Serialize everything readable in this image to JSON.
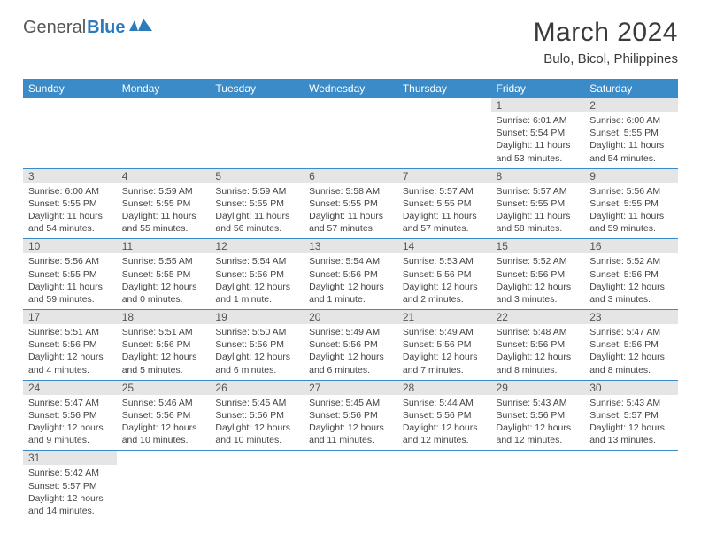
{
  "logo": {
    "word1": "General",
    "word2": "Blue"
  },
  "title": "March 2024",
  "location": "Bulo, Bicol, Philippines",
  "weekdays": [
    "Sunday",
    "Monday",
    "Tuesday",
    "Wednesday",
    "Thursday",
    "Friday",
    "Saturday"
  ],
  "colors": {
    "header_bg": "#3b8bc8",
    "header_fg": "#ffffff",
    "daynum_bg": "#e5e5e5",
    "divider": "#3b8bc8",
    "logo_blue": "#2b7bbf",
    "text": "#333333"
  },
  "weeks": [
    [
      null,
      null,
      null,
      null,
      null,
      {
        "n": "1",
        "sr": "Sunrise: 6:01 AM",
        "ss": "Sunset: 5:54 PM",
        "dl": "Daylight: 11 hours and 53 minutes."
      },
      {
        "n": "2",
        "sr": "Sunrise: 6:00 AM",
        "ss": "Sunset: 5:55 PM",
        "dl": "Daylight: 11 hours and 54 minutes."
      }
    ],
    [
      {
        "n": "3",
        "sr": "Sunrise: 6:00 AM",
        "ss": "Sunset: 5:55 PM",
        "dl": "Daylight: 11 hours and 54 minutes."
      },
      {
        "n": "4",
        "sr": "Sunrise: 5:59 AM",
        "ss": "Sunset: 5:55 PM",
        "dl": "Daylight: 11 hours and 55 minutes."
      },
      {
        "n": "5",
        "sr": "Sunrise: 5:59 AM",
        "ss": "Sunset: 5:55 PM",
        "dl": "Daylight: 11 hours and 56 minutes."
      },
      {
        "n": "6",
        "sr": "Sunrise: 5:58 AM",
        "ss": "Sunset: 5:55 PM",
        "dl": "Daylight: 11 hours and 57 minutes."
      },
      {
        "n": "7",
        "sr": "Sunrise: 5:57 AM",
        "ss": "Sunset: 5:55 PM",
        "dl": "Daylight: 11 hours and 57 minutes."
      },
      {
        "n": "8",
        "sr": "Sunrise: 5:57 AM",
        "ss": "Sunset: 5:55 PM",
        "dl": "Daylight: 11 hours and 58 minutes."
      },
      {
        "n": "9",
        "sr": "Sunrise: 5:56 AM",
        "ss": "Sunset: 5:55 PM",
        "dl": "Daylight: 11 hours and 59 minutes."
      }
    ],
    [
      {
        "n": "10",
        "sr": "Sunrise: 5:56 AM",
        "ss": "Sunset: 5:55 PM",
        "dl": "Daylight: 11 hours and 59 minutes."
      },
      {
        "n": "11",
        "sr": "Sunrise: 5:55 AM",
        "ss": "Sunset: 5:55 PM",
        "dl": "Daylight: 12 hours and 0 minutes."
      },
      {
        "n": "12",
        "sr": "Sunrise: 5:54 AM",
        "ss": "Sunset: 5:56 PM",
        "dl": "Daylight: 12 hours and 1 minute."
      },
      {
        "n": "13",
        "sr": "Sunrise: 5:54 AM",
        "ss": "Sunset: 5:56 PM",
        "dl": "Daylight: 12 hours and 1 minute."
      },
      {
        "n": "14",
        "sr": "Sunrise: 5:53 AM",
        "ss": "Sunset: 5:56 PM",
        "dl": "Daylight: 12 hours and 2 minutes."
      },
      {
        "n": "15",
        "sr": "Sunrise: 5:52 AM",
        "ss": "Sunset: 5:56 PM",
        "dl": "Daylight: 12 hours and 3 minutes."
      },
      {
        "n": "16",
        "sr": "Sunrise: 5:52 AM",
        "ss": "Sunset: 5:56 PM",
        "dl": "Daylight: 12 hours and 3 minutes."
      }
    ],
    [
      {
        "n": "17",
        "sr": "Sunrise: 5:51 AM",
        "ss": "Sunset: 5:56 PM",
        "dl": "Daylight: 12 hours and 4 minutes."
      },
      {
        "n": "18",
        "sr": "Sunrise: 5:51 AM",
        "ss": "Sunset: 5:56 PM",
        "dl": "Daylight: 12 hours and 5 minutes."
      },
      {
        "n": "19",
        "sr": "Sunrise: 5:50 AM",
        "ss": "Sunset: 5:56 PM",
        "dl": "Daylight: 12 hours and 6 minutes."
      },
      {
        "n": "20",
        "sr": "Sunrise: 5:49 AM",
        "ss": "Sunset: 5:56 PM",
        "dl": "Daylight: 12 hours and 6 minutes."
      },
      {
        "n": "21",
        "sr": "Sunrise: 5:49 AM",
        "ss": "Sunset: 5:56 PM",
        "dl": "Daylight: 12 hours and 7 minutes."
      },
      {
        "n": "22",
        "sr": "Sunrise: 5:48 AM",
        "ss": "Sunset: 5:56 PM",
        "dl": "Daylight: 12 hours and 8 minutes."
      },
      {
        "n": "23",
        "sr": "Sunrise: 5:47 AM",
        "ss": "Sunset: 5:56 PM",
        "dl": "Daylight: 12 hours and 8 minutes."
      }
    ],
    [
      {
        "n": "24",
        "sr": "Sunrise: 5:47 AM",
        "ss": "Sunset: 5:56 PM",
        "dl": "Daylight: 12 hours and 9 minutes."
      },
      {
        "n": "25",
        "sr": "Sunrise: 5:46 AM",
        "ss": "Sunset: 5:56 PM",
        "dl": "Daylight: 12 hours and 10 minutes."
      },
      {
        "n": "26",
        "sr": "Sunrise: 5:45 AM",
        "ss": "Sunset: 5:56 PM",
        "dl": "Daylight: 12 hours and 10 minutes."
      },
      {
        "n": "27",
        "sr": "Sunrise: 5:45 AM",
        "ss": "Sunset: 5:56 PM",
        "dl": "Daylight: 12 hours and 11 minutes."
      },
      {
        "n": "28",
        "sr": "Sunrise: 5:44 AM",
        "ss": "Sunset: 5:56 PM",
        "dl": "Daylight: 12 hours and 12 minutes."
      },
      {
        "n": "29",
        "sr": "Sunrise: 5:43 AM",
        "ss": "Sunset: 5:56 PM",
        "dl": "Daylight: 12 hours and 12 minutes."
      },
      {
        "n": "30",
        "sr": "Sunrise: 5:43 AM",
        "ss": "Sunset: 5:57 PM",
        "dl": "Daylight: 12 hours and 13 minutes."
      }
    ],
    [
      {
        "n": "31",
        "sr": "Sunrise: 5:42 AM",
        "ss": "Sunset: 5:57 PM",
        "dl": "Daylight: 12 hours and 14 minutes."
      },
      null,
      null,
      null,
      null,
      null,
      null
    ]
  ]
}
